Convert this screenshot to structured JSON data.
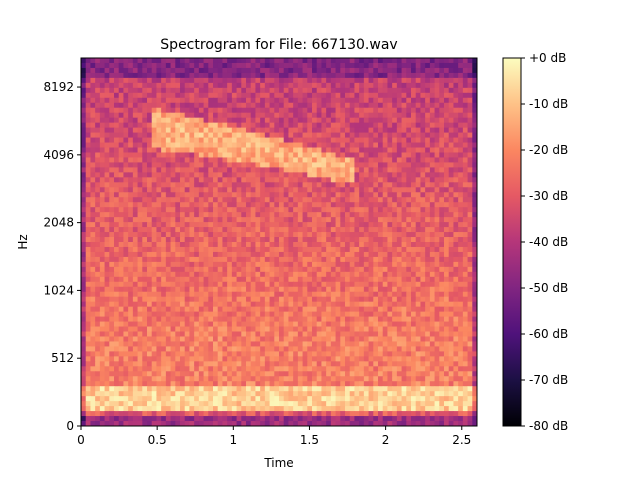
{
  "chart_data": {
    "type": "heatmap",
    "title": "Spectrogram for File: 667130.wav",
    "xlabel": "Time",
    "ylabel": "Hz",
    "x_scale": "linear",
    "y_scale": "symlog (base 2)",
    "xlim": [
      0,
      2.6
    ],
    "x_ticks": [
      0,
      0.5,
      1,
      1.5,
      2,
      2.5
    ],
    "x_tick_labels": [
      "0",
      "0.5",
      "1",
      "1.5",
      "2",
      "2.5"
    ],
    "y_ticks": [
      0,
      512,
      1024,
      2048,
      4096,
      8192
    ],
    "y_tick_labels": [
      "0",
      "512",
      "1024",
      "2048",
      "4096",
      "8192"
    ],
    "colormap": "magma",
    "colorbar": {
      "range_db": [
        -80,
        0
      ],
      "ticks": [
        0,
        -10,
        -20,
        -30,
        -40,
        -50,
        -60,
        -70,
        -80
      ],
      "tick_labels": [
        "+0 dB",
        "-10 dB",
        "-20 dB",
        "-30 dB",
        "-40 dB",
        "-50 dB",
        "-60 dB",
        "-70 dB",
        "-80 dB"
      ],
      "colors": [
        "#000004",
        "#1c1044",
        "#4f127b",
        "#812581",
        "#b5367a",
        "#e55964",
        "#fb8761",
        "#fec287",
        "#fcfdbf"
      ]
    },
    "features": [
      {
        "name": "bird-call",
        "time_start": 0.45,
        "time_end": 1.8,
        "freq_start_hz": 5400,
        "freq_end_hz": 3400,
        "level_db": -12
      },
      {
        "name": "low-frequency-band",
        "time_start": 0.0,
        "time_end": 2.6,
        "freq_low_hz": 120,
        "freq_high_hz": 300,
        "level_db": -8
      }
    ]
  }
}
